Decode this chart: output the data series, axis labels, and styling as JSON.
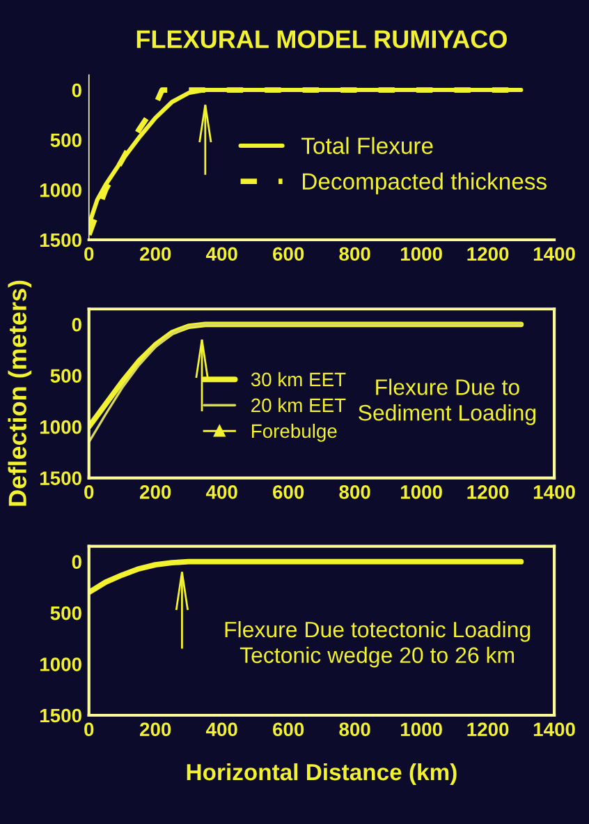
{
  "chart_data": [
    {
      "type": "line",
      "title": "FLEXURAL MODEL RUMIYACO",
      "xlim": [
        0,
        1400
      ],
      "xticks": [
        0,
        200,
        400,
        600,
        800,
        1000,
        1200,
        1400
      ],
      "ylim": [
        1500,
        -150
      ],
      "yticks": [
        0,
        500,
        1000,
        1500
      ],
      "legend": "right",
      "grid": false,
      "series": [
        {
          "name": "Total Flexure",
          "color": "#f2f230",
          "line_style": "solid",
          "x": [
            0,
            25,
            50,
            100,
            150,
            200,
            250,
            300,
            350,
            400,
            600,
            800,
            1000,
            1200,
            1300
          ],
          "values": [
            1350,
            1100,
            950,
            700,
            480,
            280,
            120,
            30,
            0,
            0,
            0,
            0,
            0,
            0,
            0
          ]
        },
        {
          "name": "Decompacted thickness",
          "color": "#f2f230",
          "line_style": "dashed",
          "x": [
            0,
            50,
            100,
            150,
            200,
            220,
            300,
            400,
            600,
            800,
            1000,
            1200,
            1300
          ],
          "values": [
            1450,
            1000,
            700,
            400,
            150,
            0,
            0,
            0,
            0,
            0,
            0,
            0,
            0
          ]
        },
        {
          "color": "#f2f230",
          "x": [
            350,
            350
          ],
          "values": [
            850,
            150
          ]
        }
      ]
    },
    {
      "type": "line",
      "ylabel": "Deflection (meters)",
      "xlim": [
        0,
        1400
      ],
      "xticks": [
        0,
        200,
        400,
        600,
        800,
        1000,
        1200,
        1400
      ],
      "ylim": [
        1500,
        -150
      ],
      "yticks": [
        0,
        500,
        1000,
        1500
      ],
      "legend": "center",
      "grid": false,
      "annotations": [
        "Flexure Due to\nSediment Loading"
      ],
      "series": [
        {
          "name": "30 km EET",
          "color": "#f2f230",
          "line_style": "solid",
          "x": [
            0,
            50,
            100,
            150,
            200,
            250,
            300,
            350,
            400,
            1300
          ],
          "values": [
            1000,
            780,
            560,
            360,
            200,
            80,
            20,
            0,
            0,
            0
          ]
        },
        {
          "name": "20 km EET",
          "color": "#d8d860",
          "line_style": "solid",
          "x": [
            0,
            50,
            100,
            150,
            200,
            250,
            300,
            350,
            400,
            1300
          ],
          "values": [
            1150,
            880,
            620,
            400,
            220,
            90,
            20,
            0,
            0,
            0
          ]
        },
        {
          "name": "Forebulge",
          "color": "#f2f230",
          "x": [
            340,
            340
          ],
          "values": [
            850,
            150
          ]
        }
      ]
    },
    {
      "type": "line",
      "xlabel": "Horizontal Distance (km)",
      "xlim": [
        0,
        1400
      ],
      "xticks": [
        0,
        200,
        400,
        600,
        800,
        1000,
        1200,
        1400
      ],
      "ylim": [
        1500,
        -150
      ],
      "yticks": [
        0,
        500,
        1000,
        1500
      ],
      "grid": false,
      "annotations": [
        "Flexure Due totectonic Loading\nTectonic wedge 20 to 26 km"
      ],
      "series": [
        {
          "color": "#f2f230",
          "line_style": "solid",
          "x": [
            0,
            50,
            100,
            150,
            200,
            250,
            300,
            400,
            1300
          ],
          "values": [
            300,
            200,
            130,
            70,
            30,
            10,
            0,
            0,
            0
          ]
        },
        {
          "color": "#f2f230",
          "x": [
            280,
            280
          ],
          "values": [
            850,
            100
          ]
        }
      ]
    }
  ]
}
